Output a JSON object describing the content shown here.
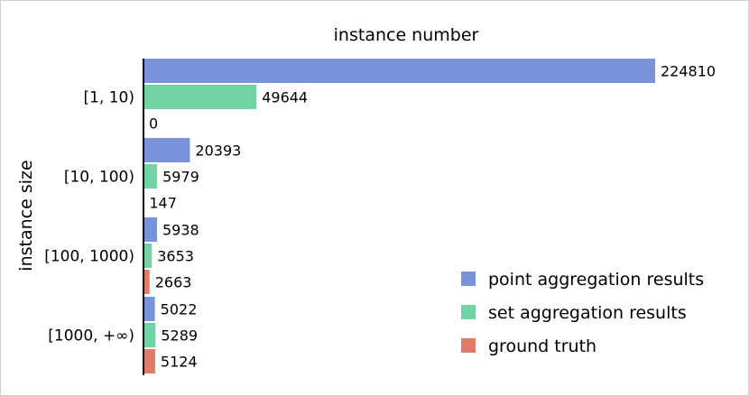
{
  "chart_data": {
    "type": "bar",
    "orientation": "horizontal",
    "title": "instance number",
    "xlabel": "",
    "ylabel": "instance size",
    "categories": [
      "[1, 10)",
      "[10, 100)",
      "[100, 1000)",
      "[1000, +∞)"
    ],
    "series": [
      {
        "name": "point aggregation results",
        "color": "#7893da",
        "values": [
          224810,
          20393,
          5938,
          5022
        ]
      },
      {
        "name": "set aggregation results",
        "color": "#72d3a5",
        "values": [
          49644,
          5979,
          3653,
          5289
        ]
      },
      {
        "name": "ground truth",
        "color": "#e07b6a",
        "values": [
          0,
          147,
          2663,
          5124
        ]
      }
    ],
    "xlim": [
      0,
      240000
    ],
    "grid": false,
    "legend_position": "bottom-right"
  }
}
